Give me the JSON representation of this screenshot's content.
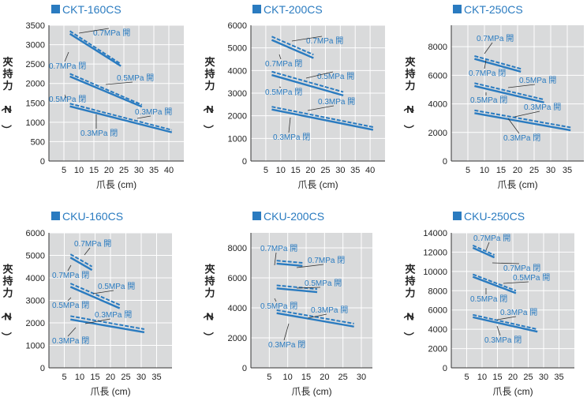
{
  "colors": {
    "line": "#2a7bc0",
    "plot_bg": "#d9dadb",
    "grid": "#ffffff",
    "title": "#2a7bc0",
    "square": "#2a7bc0"
  },
  "chart_data": [
    {
      "type": "line",
      "title": "CKT-160CS",
      "xlabel": "爪長 (cm)",
      "ylabel": "夾持力（N）",
      "xlim": [
        0,
        45
      ],
      "ylim": [
        0,
        3500
      ],
      "xticks": [
        "5",
        "10",
        "15",
        "20",
        "25",
        "30",
        "35",
        "40"
      ],
      "yticks": [
        "0",
        "500",
        "1000",
        "1500",
        "2000",
        "2500",
        "3000",
        "3500"
      ],
      "grid": true,
      "series": [
        {
          "name": "0.7MPa 開",
          "style": "dashed",
          "x": [
            7,
            24
          ],
          "y": [
            3350,
            2500
          ]
        },
        {
          "name": "0.7MPa 閉",
          "style": "solid",
          "x": [
            7,
            24
          ],
          "y": [
            3280,
            2450
          ]
        },
        {
          "name": "0.5MPa 開",
          "style": "dashed",
          "x": [
            7,
            31
          ],
          "y": [
            2250,
            1450
          ]
        },
        {
          "name": "0.5MPa 閉",
          "style": "solid",
          "x": [
            7,
            31
          ],
          "y": [
            2180,
            1400
          ]
        },
        {
          "name": "0.3MPa 開",
          "style": "dashed",
          "x": [
            7,
            41
          ],
          "y": [
            1480,
            800
          ]
        },
        {
          "name": "0.3MPa 閉",
          "style": "solid",
          "x": [
            7,
            41
          ],
          "y": [
            1410,
            740
          ]
        }
      ],
      "annotations": [
        {
          "text": "0.7MPa 開"
        },
        {
          "text": "0.7MPa 閉"
        },
        {
          "text": "0.5MPa 開"
        },
        {
          "text": "0.5MPa 閉"
        },
        {
          "text": "0.3MPa 開"
        },
        {
          "text": "0.3MPa 閉"
        }
      ]
    },
    {
      "type": "line",
      "title": "CKT-200CS",
      "xlabel": "爪長 (cm)",
      "ylabel": "夾持力（N）",
      "xlim": [
        0,
        45
      ],
      "ylim": [
        0,
        6000
      ],
      "xticks": [
        "5",
        "10",
        "15",
        "20",
        "25",
        "30",
        "35",
        "40"
      ],
      "yticks": [
        "0",
        "1000",
        "2000",
        "3000",
        "4000",
        "5000",
        "6000"
      ],
      "grid": true,
      "series": [
        {
          "name": "0.7MPa 開",
          "style": "dashed",
          "x": [
            7,
            21
          ],
          "y": [
            5500,
            4700
          ]
        },
        {
          "name": "0.7MPa 閉",
          "style": "solid",
          "x": [
            7,
            21
          ],
          "y": [
            5350,
            4550
          ]
        },
        {
          "name": "0.5MPa 開",
          "style": "dashed",
          "x": [
            7,
            31
          ],
          "y": [
            3950,
            3050
          ]
        },
        {
          "name": "0.5MPa 閉",
          "style": "solid",
          "x": [
            7,
            31
          ],
          "y": [
            3800,
            2900
          ]
        },
        {
          "name": "0.3MPa 開",
          "style": "dashed",
          "x": [
            7,
            41
          ],
          "y": [
            2400,
            1500
          ]
        },
        {
          "name": "0.3MPa 閉",
          "style": "solid",
          "x": [
            7,
            41
          ],
          "y": [
            2280,
            1380
          ]
        }
      ],
      "annotations": [
        {
          "text": "0.7MPa 開"
        },
        {
          "text": "0.7MPa 閉"
        },
        {
          "text": "0.5MPa 開"
        },
        {
          "text": "0.5MPa 閉"
        },
        {
          "text": "0.3MPa 開"
        },
        {
          "text": "0.3MPa 閉"
        }
      ]
    },
    {
      "type": "line",
      "title": "CKT-250CS",
      "xlabel": "爪長 (cm)",
      "ylabel": "夾持力（N）",
      "xlim": [
        0,
        40
      ],
      "ylim": [
        0,
        9500
      ],
      "xticks": [
        "5",
        "10",
        "15",
        "20",
        "25",
        "30",
        "35"
      ],
      "yticks": [
        "0",
        "2000",
        "4000",
        "6000",
        "8000"
      ],
      "ytick_values": [
        0,
        2000,
        4000,
        6000,
        8000
      ],
      "grid": true,
      "series": [
        {
          "name": "0.7MPa 開",
          "style": "dashed",
          "x": [
            7,
            21
          ],
          "y": [
            7350,
            6450
          ]
        },
        {
          "name": "0.7MPa 閉",
          "style": "solid",
          "x": [
            7,
            21
          ],
          "y": [
            7150,
            6250
          ]
        },
        {
          "name": "0.5MPa 開",
          "style": "dashed",
          "x": [
            7,
            28
          ],
          "y": [
            5450,
            4300
          ]
        },
        {
          "name": "0.5MPa 閉",
          "style": "solid",
          "x": [
            7,
            28
          ],
          "y": [
            5250,
            4100
          ]
        },
        {
          "name": "0.3MPa 開",
          "style": "dashed",
          "x": [
            7,
            36
          ],
          "y": [
            3550,
            2350
          ]
        },
        {
          "name": "0.3MPa 閉",
          "style": "solid",
          "x": [
            7,
            36
          ],
          "y": [
            3350,
            2150
          ]
        }
      ],
      "annotations": [
        {
          "text": "0.7MPa 開"
        },
        {
          "text": "0.7MPa 閉"
        },
        {
          "text": "0.5MPa 開"
        },
        {
          "text": "0.5MPa 閉"
        },
        {
          "text": "0.3MPa 開"
        },
        {
          "text": "0.3MPa 閉"
        }
      ]
    },
    {
      "type": "line",
      "title": "CKU-160CS",
      "xlabel": "爪長 (cm)",
      "ylabel": "夾持力（N）",
      "xlim": [
        0,
        40
      ],
      "ylim": [
        0,
        6000
      ],
      "xticks": [
        "5",
        "10",
        "15",
        "20",
        "25",
        "30",
        "35"
      ],
      "yticks": [
        "0",
        "1000",
        "2000",
        "3000",
        "4000",
        "5000",
        "6000"
      ],
      "grid": true,
      "series": [
        {
          "name": "0.7MPa 開",
          "style": "dashed",
          "x": [
            7,
            14
          ],
          "y": [
            5050,
            4500
          ]
        },
        {
          "name": "0.7MPa 閉",
          "style": "solid",
          "x": [
            7,
            14
          ],
          "y": [
            4900,
            4350
          ]
        },
        {
          "name": "0.5MPa 開",
          "style": "dashed",
          "x": [
            7,
            23
          ],
          "y": [
            3750,
            2800
          ]
        },
        {
          "name": "0.5MPa 閉",
          "style": "solid",
          "x": [
            7,
            23
          ],
          "y": [
            3600,
            2650
          ]
        },
        {
          "name": "0.3MPa 開",
          "style": "dashed",
          "x": [
            7,
            31
          ],
          "y": [
            2300,
            1720
          ]
        },
        {
          "name": "0.3MPa 閉",
          "style": "solid",
          "x": [
            7,
            31
          ],
          "y": [
            2150,
            1580
          ]
        }
      ],
      "annotations": [
        {
          "text": "0.7MPa 開"
        },
        {
          "text": "0.7MPa 閉"
        },
        {
          "text": "0.5MPa 開"
        },
        {
          "text": "0.5MPa 閉"
        },
        {
          "text": "0.3MPa 開"
        },
        {
          "text": "0.3MPa 閉"
        }
      ]
    },
    {
      "type": "line",
      "title": "CKU-200CS",
      "xlabel": "爪長 (cm)",
      "ylabel": "夾持力（N）",
      "xlim": [
        0,
        33
      ],
      "ylim": [
        0,
        9000
      ],
      "xticks": [
        "5",
        "10",
        "15",
        "20",
        "25",
        "30"
      ],
      "yticks": [
        "0",
        "2000",
        "4000",
        "6000",
        "8000"
      ],
      "ytick_values": [
        0,
        2000,
        4000,
        6000,
        8000
      ],
      "grid": true,
      "series": [
        {
          "name": "0.7MPa 開",
          "style": "dashed",
          "x": [
            7,
            14
          ],
          "y": [
            7150,
            7000
          ]
        },
        {
          "name": "0.7MPa 閉",
          "style": "solid",
          "x": [
            7,
            14
          ],
          "y": [
            6950,
            6800
          ]
        },
        {
          "name": "0.5MPa 開",
          "style": "dashed",
          "x": [
            7,
            18
          ],
          "y": [
            5500,
            5250
          ]
        },
        {
          "name": "0.5MPa 閉",
          "style": "solid",
          "x": [
            7,
            18
          ],
          "y": [
            5300,
            5050
          ]
        },
        {
          "name": "0.3MPa 開",
          "style": "dashed",
          "x": [
            7,
            28
          ],
          "y": [
            3850,
            2950
          ]
        },
        {
          "name": "0.3MPa 閉",
          "style": "solid",
          "x": [
            7,
            28
          ],
          "y": [
            3650,
            2750
          ]
        }
      ],
      "annotations": [
        {
          "text": "0.7MPa 開"
        },
        {
          "text": "0.7MPa 閉"
        },
        {
          "text": "0.5MPa 開"
        },
        {
          "text": "0.5MPa 閉"
        },
        {
          "text": "0.3MPa 開"
        },
        {
          "text": "0.3MPa 閉"
        }
      ]
    },
    {
      "type": "line",
      "title": "CKU-250CS",
      "xlabel": "爪長 (cm)",
      "ylabel": "夾持力（N）",
      "xlim": [
        0,
        40
      ],
      "ylim": [
        0,
        14000
      ],
      "xticks": [
        "5",
        "10",
        "15",
        "20",
        "25",
        "30",
        "35"
      ],
      "yticks": [
        "0",
        "2000",
        "4000",
        "6000",
        "8000",
        "10000",
        "12000",
        "14000"
      ],
      "grid": true,
      "series": [
        {
          "name": "0.7MPa 開",
          "style": "dashed",
          "x": [
            7,
            14
          ],
          "y": [
            12700,
            11700
          ]
        },
        {
          "name": "0.7MPa 閉",
          "style": "solid",
          "x": [
            7,
            14
          ],
          "y": [
            12450,
            11450
          ]
        },
        {
          "name": "0.5MPa 開",
          "style": "dashed",
          "x": [
            7,
            21
          ],
          "y": [
            9700,
            8000
          ]
        },
        {
          "name": "0.5MPa 閉",
          "style": "solid",
          "x": [
            7,
            21
          ],
          "y": [
            9450,
            7750
          ]
        },
        {
          "name": "0.3MPa 開",
          "style": "dashed",
          "x": [
            7,
            28
          ],
          "y": [
            5500,
            4000
          ]
        },
        {
          "name": "0.3MPa 閉",
          "style": "solid",
          "x": [
            7,
            28
          ],
          "y": [
            5250,
            3750
          ]
        }
      ],
      "annotations": [
        {
          "text": "0.7MPa 開"
        },
        {
          "text": "0.7MPa 閉"
        },
        {
          "text": "0.5MPa 開"
        },
        {
          "text": "0.5MPa 閉"
        },
        {
          "text": "0.3MPa 開"
        },
        {
          "text": "0.3MPa 閉"
        }
      ]
    }
  ]
}
